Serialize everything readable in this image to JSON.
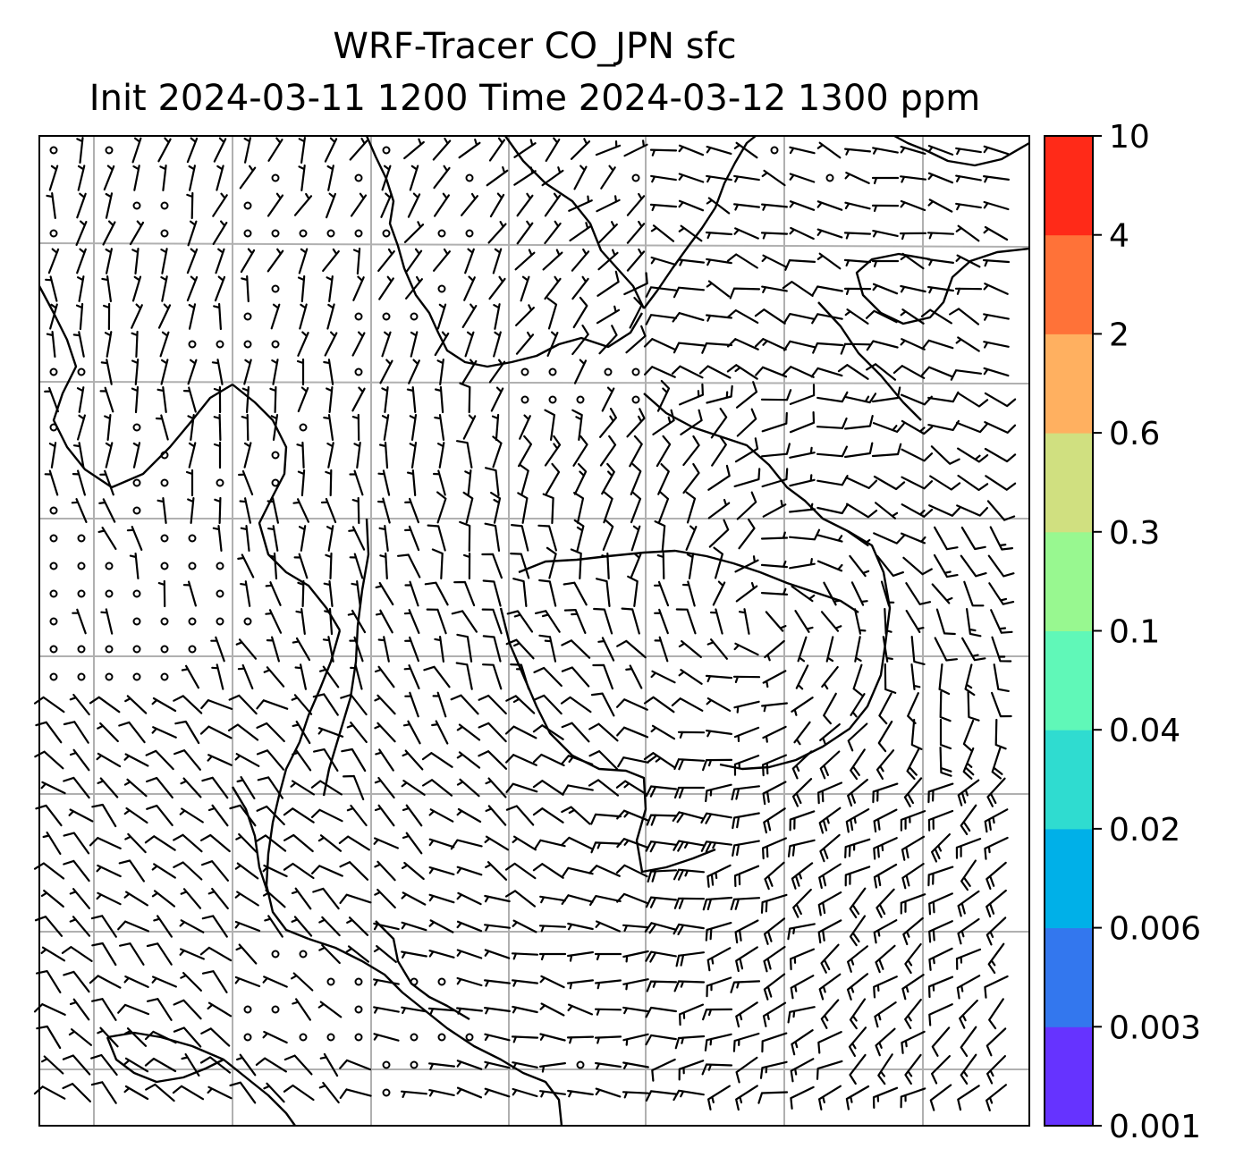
{
  "title": {
    "line1": "WRF-Tracer CO_JPN sfc",
    "line2": "Init 2024-03-11 1200 Time 2024-03-12 1300 ppm"
  },
  "map": {
    "field": "surface wind barbs over CO tracer concentration",
    "concentration_visible": "below lowest level (white)",
    "gridlines": true,
    "gridline_color": "#b0b0b0",
    "barb_color": "#000000",
    "cyclone_center": "southeast of the domain centre"
  },
  "colorbar": {
    "ticks": [
      "10",
      "4",
      "2",
      "0.6",
      "0.3",
      "0.1",
      "0.04",
      "0.02",
      "0.006",
      "0.003",
      "0.001"
    ],
    "colors": [
      "#6633ff",
      "#3377ee",
      "#00b0e8",
      "#2fdcd0",
      "#60f8b8",
      "#98f890",
      "#d0e080",
      "#ffb060",
      "#ff7238",
      "#ff2a18"
    ]
  }
}
